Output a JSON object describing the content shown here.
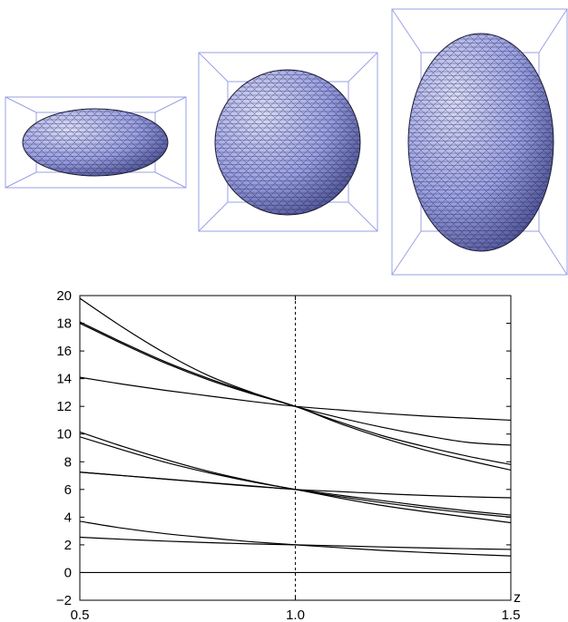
{
  "colors": {
    "shape_fill_light": "#c9cdf4",
    "shape_fill_mid": "#8f96e0",
    "shape_fill_dark": "#4a4f9a",
    "mesh_line": "#1c1c34",
    "box_line": "#9aa0e6",
    "curve_line": "#000000"
  },
  "shapes": [
    {
      "label": "oblate-spheroid",
      "aspect": 0.5
    },
    {
      "label": "sphere",
      "aspect": 1.0
    },
    {
      "label": "prolate-spheroid",
      "aspect": 1.5
    }
  ],
  "chart_data": {
    "type": "line",
    "title": "",
    "xlabel": "z",
    "ylabel": "",
    "xlim": [
      0.5,
      1.5
    ],
    "ylim": [
      -2,
      20
    ],
    "xticks": [
      "0.5",
      "1.0",
      "1.5"
    ],
    "yticks": [
      "−2",
      "0",
      "2",
      "4",
      "6",
      "8",
      "10",
      "12",
      "14",
      "16",
      "18",
      "20"
    ],
    "grid": false,
    "reference_line": {
      "x": 1.0,
      "style": "dashed"
    },
    "x": [
      0.5,
      0.6,
      0.7,
      0.8,
      0.9,
      1.0,
      1.1,
      1.2,
      1.3,
      1.4,
      1.5
    ],
    "series": [
      {
        "values": [
          0,
          0,
          0,
          0,
          0,
          0,
          0,
          0,
          0,
          0,
          0
        ]
      },
      {
        "values": [
          2.55,
          2.4,
          2.27,
          2.16,
          2.07,
          2.0,
          1.93,
          1.85,
          1.78,
          1.72,
          1.67
        ]
      },
      {
        "values": [
          3.7,
          3.2,
          2.8,
          2.5,
          2.22,
          2.0,
          1.8,
          1.6,
          1.45,
          1.32,
          1.2
        ]
      },
      {
        "values": [
          7.25,
          7.0,
          6.75,
          6.5,
          6.25,
          6.0,
          5.85,
          5.7,
          5.57,
          5.47,
          5.4
        ]
      },
      {
        "values": [
          7.25,
          7.0,
          6.74,
          6.48,
          6.22,
          6.0,
          5.6,
          5.2,
          4.8,
          4.45,
          4.15
        ]
      },
      {
        "values": [
          9.8,
          8.85,
          7.95,
          7.2,
          6.55,
          6.0,
          5.4,
          4.85,
          4.4,
          4.0,
          3.6
        ]
      },
      {
        "values": [
          10.15,
          9.1,
          8.15,
          7.3,
          6.6,
          6.0,
          5.5,
          5.05,
          4.65,
          4.3,
          4.0
        ]
      },
      {
        "values": [
          14.1,
          13.6,
          13.15,
          12.75,
          12.35,
          12.0,
          11.75,
          11.5,
          11.3,
          11.15,
          11.0
        ]
      },
      {
        "values": [
          18.1,
          16.6,
          15.2,
          14.0,
          12.95,
          12.0,
          11.2,
          10.5,
          9.9,
          9.4,
          9.2
        ]
      },
      {
        "values": [
          19.8,
          17.7,
          15.8,
          14.2,
          13.0,
          12.0,
          10.9,
          9.9,
          9.1,
          8.4,
          7.8
        ]
      },
      {
        "values": [
          18.0,
          16.5,
          15.1,
          13.9,
          12.9,
          12.0,
          10.8,
          9.75,
          8.85,
          8.1,
          7.4
        ]
      }
    ]
  }
}
